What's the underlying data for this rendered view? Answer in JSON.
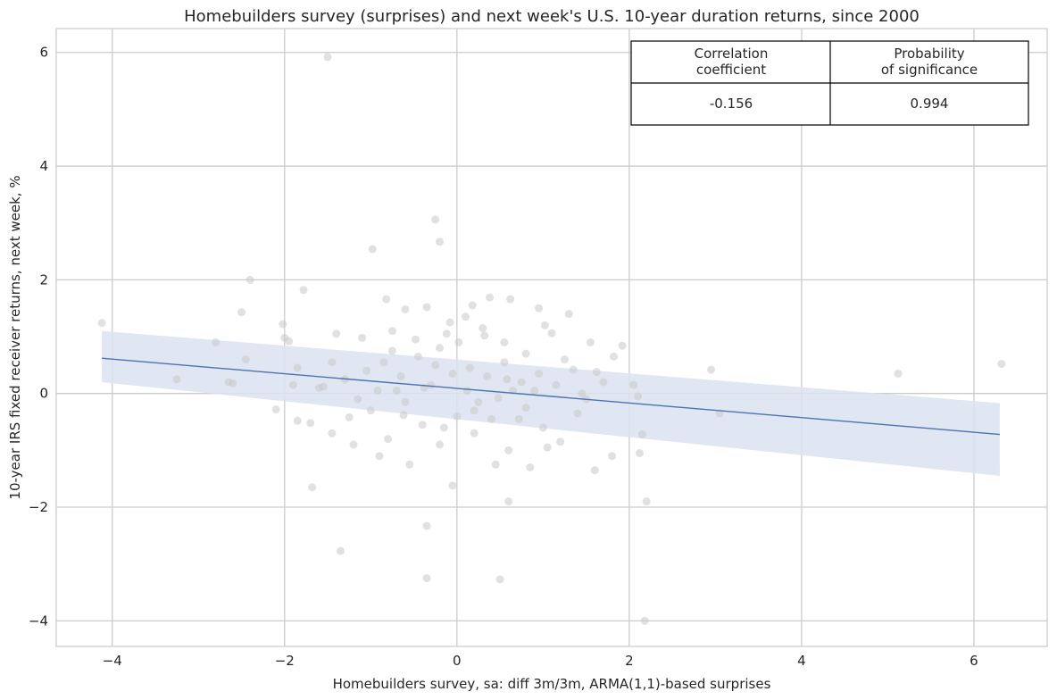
{
  "chart_data": {
    "type": "scatter",
    "title": "Homebuilders survey (surprises) and next week's U.S. 10-year duration returns, since 2000",
    "xlabel": "Homebuilders survey, sa: diff 3m/3m, ARMA(1,1)-based surprises",
    "ylabel": "10-year IRS fixed receiver returns, next week, %",
    "xlim": [
      -4.65,
      6.85
    ],
    "ylim": [
      -4.45,
      6.42
    ],
    "xticks": [
      -4,
      -2,
      0,
      2,
      4,
      6
    ],
    "yticks": [
      -4,
      -2,
      0,
      2,
      4,
      6
    ],
    "x_tick_labels": [
      "−4",
      "−2",
      "0",
      "2",
      "4",
      "6"
    ],
    "y_tick_labels": [
      "−4",
      "−2",
      "0",
      "2",
      "4",
      "6"
    ],
    "grid": true,
    "point_color": "#c8c8c8",
    "line_color": "#4c72b0",
    "band_color": "#dbe3f0",
    "regression": {
      "x": [
        -4.12,
        6.3
      ],
      "y": [
        0.62,
        -0.72
      ],
      "ci_lower": [
        0.2,
        -1.45
      ],
      "ci_upper": [
        1.1,
        -0.17
      ]
    },
    "stats_table": {
      "headers": [
        [
          "Correlation",
          "coefficient"
        ],
        [
          "Probability",
          "of significance"
        ]
      ],
      "values": [
        "-0.156",
        "0.994"
      ]
    },
    "points": [
      [
        -1.5,
        5.92
      ],
      [
        -0.25,
        3.06
      ],
      [
        -0.2,
        2.67
      ],
      [
        -0.98,
        2.54
      ],
      [
        -2.4,
        2.0
      ],
      [
        -1.78,
        1.82
      ],
      [
        -0.82,
        1.66
      ],
      [
        0.38,
        1.69
      ],
      [
        0.62,
        1.66
      ],
      [
        -2.5,
        1.43
      ],
      [
        -4.12,
        1.24
      ],
      [
        -2.02,
        1.22
      ],
      [
        0.95,
        1.5
      ],
      [
        1.3,
        1.4
      ],
      [
        -0.6,
        1.48
      ],
      [
        0.1,
        1.35
      ],
      [
        -0.35,
        1.52
      ],
      [
        0.18,
        1.55
      ],
      [
        -0.12,
        1.05
      ],
      [
        0.32,
        1.02
      ],
      [
        -1.4,
        1.05
      ],
      [
        -1.1,
        0.98
      ],
      [
        -0.75,
        1.1
      ],
      [
        0.55,
        0.9
      ],
      [
        0.8,
        0.7
      ],
      [
        1.1,
        1.06
      ],
      [
        1.55,
        0.9
      ],
      [
        1.82,
        0.65
      ],
      [
        1.92,
        0.84
      ],
      [
        -2.0,
        0.98
      ],
      [
        -1.95,
        0.92
      ],
      [
        -2.8,
        0.9
      ],
      [
        -2.45,
        0.6
      ],
      [
        -2.6,
        0.18
      ],
      [
        -3.25,
        0.25
      ],
      [
        -2.65,
        0.2
      ],
      [
        -1.9,
        0.15
      ],
      [
        -1.55,
        0.12
      ],
      [
        -1.3,
        0.25
      ],
      [
        -1.05,
        0.4
      ],
      [
        -0.85,
        0.55
      ],
      [
        -0.65,
        0.3
      ],
      [
        -0.45,
        0.65
      ],
      [
        -0.25,
        0.5
      ],
      [
        -0.05,
        0.35
      ],
      [
        0.15,
        0.45
      ],
      [
        0.35,
        0.3
      ],
      [
        0.55,
        0.55
      ],
      [
        0.75,
        0.2
      ],
      [
        0.95,
        0.35
      ],
      [
        1.15,
        0.15
      ],
      [
        1.35,
        0.42
      ],
      [
        1.5,
        -0.1
      ],
      [
        1.7,
        0.2
      ],
      [
        2.05,
        0.15
      ],
      [
        2.1,
        -0.05
      ],
      [
        2.95,
        0.42
      ],
      [
        3.05,
        -0.35
      ],
      [
        5.12,
        0.35
      ],
      [
        6.32,
        0.52
      ],
      [
        -1.7,
        -0.52
      ],
      [
        -1.45,
        -0.7
      ],
      [
        -1.2,
        -0.9
      ],
      [
        -1.0,
        -0.3
      ],
      [
        -0.8,
        -0.8
      ],
      [
        -0.6,
        -0.15
      ],
      [
        -0.4,
        -0.55
      ],
      [
        -0.2,
        -0.9
      ],
      [
        0.0,
        -0.4
      ],
      [
        0.2,
        -0.7
      ],
      [
        0.4,
        -0.45
      ],
      [
        0.6,
        -1.0
      ],
      [
        0.8,
        -0.25
      ],
      [
        1.0,
        -0.6
      ],
      [
        1.2,
        -0.85
      ],
      [
        1.4,
        -0.35
      ],
      [
        1.6,
        -1.35
      ],
      [
        1.8,
        -1.1
      ],
      [
        2.12,
        -1.05
      ],
      [
        2.15,
        -0.72
      ],
      [
        -1.68,
        -1.65
      ],
      [
        -0.05,
        -1.62
      ],
      [
        0.6,
        -1.9
      ],
      [
        2.2,
        -1.9
      ],
      [
        -1.35,
        -2.77
      ],
      [
        -0.35,
        -2.33
      ],
      [
        -0.35,
        -3.25
      ],
      [
        0.5,
        -3.27
      ],
      [
        2.18,
        -4.0
      ],
      [
        -2.1,
        -0.28
      ],
      [
        -1.85,
        -0.48
      ],
      [
        -1.25,
        -0.42
      ],
      [
        -0.9,
        -1.1
      ],
      [
        -0.55,
        -1.25
      ],
      [
        0.45,
        -1.25
      ],
      [
        0.85,
        -1.3
      ],
      [
        1.05,
        -0.95
      ],
      [
        -0.15,
        -0.6
      ],
      [
        0.25,
        -0.15
      ],
      [
        -0.3,
        0.15
      ],
      [
        -0.7,
        0.05
      ],
      [
        -1.6,
        0.1
      ],
      [
        0.65,
        0.05
      ],
      [
        1.45,
        0.0
      ],
      [
        -1.15,
        -0.1
      ],
      [
        -0.48,
        0.95
      ],
      [
        0.12,
        0.05
      ],
      [
        0.72,
        -0.45
      ],
      [
        -0.92,
        0.05
      ],
      [
        0.3,
        1.15
      ],
      [
        -0.2,
        0.8
      ],
      [
        1.25,
        0.6
      ],
      [
        -1.85,
        0.45
      ],
      [
        0.48,
        -0.08
      ],
      [
        -0.62,
        -0.38
      ],
      [
        0.02,
        0.9
      ],
      [
        -0.38,
        0.1
      ],
      [
        1.62,
        0.38
      ],
      [
        -1.45,
        0.55
      ],
      [
        0.9,
        0.05
      ],
      [
        0.2,
        -0.3
      ],
      [
        -0.75,
        0.75
      ],
      [
        1.02,
        1.2
      ],
      [
        -0.08,
        1.25
      ],
      [
        0.58,
        0.25
      ]
    ]
  }
}
